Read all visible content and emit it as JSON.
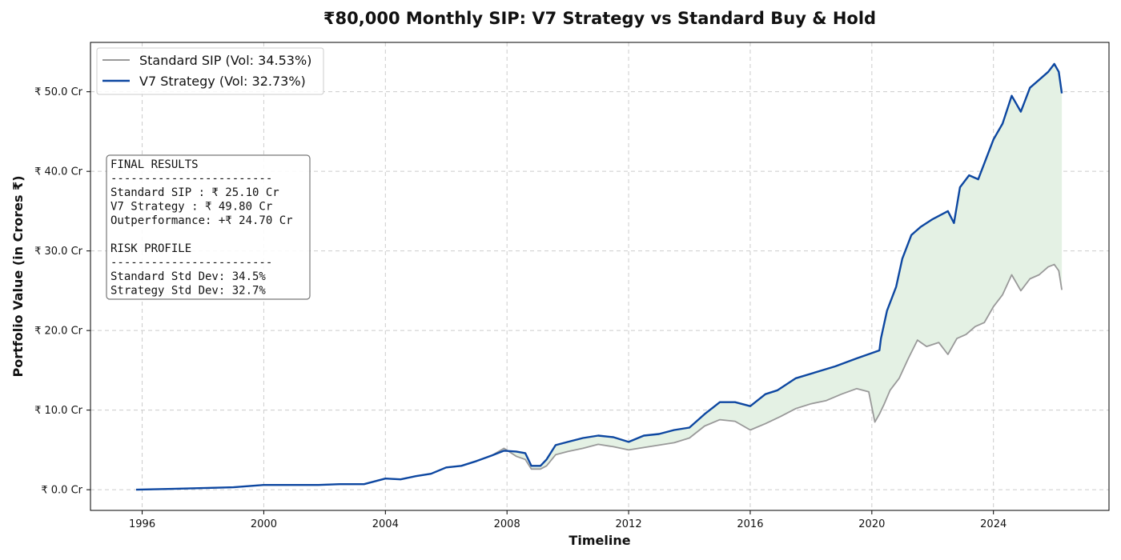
{
  "chart_data": {
    "type": "line",
    "title": "₹80,000 Monthly SIP: V7 Strategy vs Standard Buy & Hold",
    "xlabel": "Timeline",
    "ylabel": "Portfolio Value (in Crores ₹)",
    "xlim": [
      1994.3,
      2027.8
    ],
    "ylim": [
      -2.6,
      56.2
    ],
    "x_ticks": [
      1996,
      2000,
      2004,
      2008,
      2012,
      2016,
      2020,
      2024
    ],
    "x_tick_labels": [
      "1996",
      "2000",
      "2004",
      "2008",
      "2012",
      "2016",
      "2020",
      "2024"
    ],
    "y_ticks": [
      0,
      10,
      20,
      30,
      40,
      50
    ],
    "y_tick_labels": [
      "₹ 0.0 Cr",
      "₹ 10.0 Cr",
      "₹ 20.0 Cr",
      "₹ 30.0 Cr",
      "₹ 40.0 Cr",
      "₹ 50.0 Cr"
    ],
    "grid": true,
    "legend_position": "top-left",
    "fill_between": {
      "color": "#e4f1e4"
    },
    "series": [
      {
        "name": "Standard SIP (Vol: 34.53%)",
        "color": "#999999",
        "x": [
          1995.8,
          1997,
          1998,
          1999,
          2000,
          2001,
          2001.8,
          2002.5,
          2003.3,
          2004,
          2004.5,
          2005,
          2005.5,
          2006,
          2006.5,
          2007,
          2007.5,
          2007.9,
          2008.3,
          2008.6,
          2008.8,
          2009.1,
          2009.3,
          2009.6,
          2010,
          2010.5,
          2011,
          2011.5,
          2012,
          2012.5,
          2013,
          2013.5,
          2014,
          2014.5,
          2015,
          2015.5,
          2016,
          2016.5,
          2017,
          2017.5,
          2018,
          2018.5,
          2019,
          2019.5,
          2019.9,
          2020.1,
          2020.25,
          2020.4,
          2020.6,
          2020.9,
          2021.2,
          2021.5,
          2021.8,
          2022.2,
          2022.5,
          2022.8,
          2023.1,
          2023.4,
          2023.7,
          2024,
          2024.3,
          2024.6,
          2024.9,
          2025.2,
          2025.5,
          2025.8,
          2026,
          2026.15,
          2026.25
        ],
        "values": [
          0,
          0.1,
          0.2,
          0.3,
          0.6,
          0.6,
          0.6,
          0.7,
          0.7,
          1.4,
          1.3,
          1.7,
          2.0,
          2.8,
          3.0,
          3.6,
          4.3,
          5.2,
          4.2,
          3.8,
          2.6,
          2.6,
          3.0,
          4.4,
          4.8,
          5.2,
          5.7,
          5.4,
          5.0,
          5.3,
          5.6,
          5.9,
          6.5,
          8.0,
          8.8,
          8.6,
          7.5,
          8.3,
          9.2,
          10.2,
          10.8,
          11.2,
          12.0,
          12.7,
          12.3,
          8.5,
          9.5,
          10.7,
          12.5,
          14.0,
          16.5,
          18.8,
          18.0,
          18.5,
          17.0,
          19.0,
          19.5,
          20.5,
          21.0,
          23.0,
          24.5,
          27.0,
          25.0,
          26.5,
          27.0,
          28.0,
          28.3,
          27.5,
          25.1
        ]
      },
      {
        "name": "V7 Strategy (Vol: 32.73%)",
        "color": "#0d47a1",
        "x": [
          1995.8,
          1997,
          1998,
          1999,
          2000,
          2001,
          2001.8,
          2002.5,
          2003.3,
          2004,
          2004.5,
          2005,
          2005.5,
          2006,
          2006.5,
          2007,
          2007.5,
          2007.9,
          2008.3,
          2008.6,
          2008.8,
          2009.1,
          2009.3,
          2009.6,
          2010,
          2010.5,
          2011,
          2011.5,
          2012,
          2012.5,
          2013,
          2013.5,
          2014,
          2014.5,
          2015,
          2015.5,
          2016,
          2016.5,
          2016.9,
          2017.5,
          2018.8,
          2019.5,
          2020.25,
          2020.3,
          2020.5,
          2020.8,
          2021,
          2021.3,
          2021.6,
          2022,
          2022.5,
          2022.7,
          2022.9,
          2023.2,
          2023.5,
          2023.7,
          2024,
          2024.3,
          2024.6,
          2024.9,
          2025.2,
          2025.5,
          2025.8,
          2026,
          2026.15,
          2026.25
        ],
        "values": [
          0,
          0.1,
          0.2,
          0.3,
          0.6,
          0.6,
          0.6,
          0.7,
          0.7,
          1.4,
          1.3,
          1.7,
          2.0,
          2.8,
          3.0,
          3.6,
          4.3,
          4.9,
          4.8,
          4.6,
          3.0,
          3.0,
          3.8,
          5.6,
          6.0,
          6.5,
          6.8,
          6.6,
          6.0,
          6.8,
          7.0,
          7.5,
          7.8,
          9.5,
          11.0,
          11.0,
          10.5,
          12.0,
          12.5,
          14.0,
          15.5,
          16.5,
          17.5,
          19.0,
          22.5,
          25.5,
          29.0,
          32.0,
          33.0,
          34.0,
          35.0,
          33.5,
          38.0,
          39.5,
          39.0,
          41.0,
          44.0,
          46.0,
          49.5,
          47.5,
          50.5,
          51.5,
          52.5,
          53.5,
          52.5,
          49.8
        ]
      }
    ],
    "info_box": {
      "lines": [
        "FINAL RESULTS",
        "------------------------",
        "Standard SIP : ₹ 25.10 Cr",
        "V7 Strategy   : ₹ 49.80 Cr",
        "Outperformance: +₹ 24.70 Cr",
        "",
        "RISK PROFILE",
        "------------------------",
        "Standard Std Dev: 34.5%",
        "Strategy Std Dev: 32.7%"
      ]
    }
  }
}
